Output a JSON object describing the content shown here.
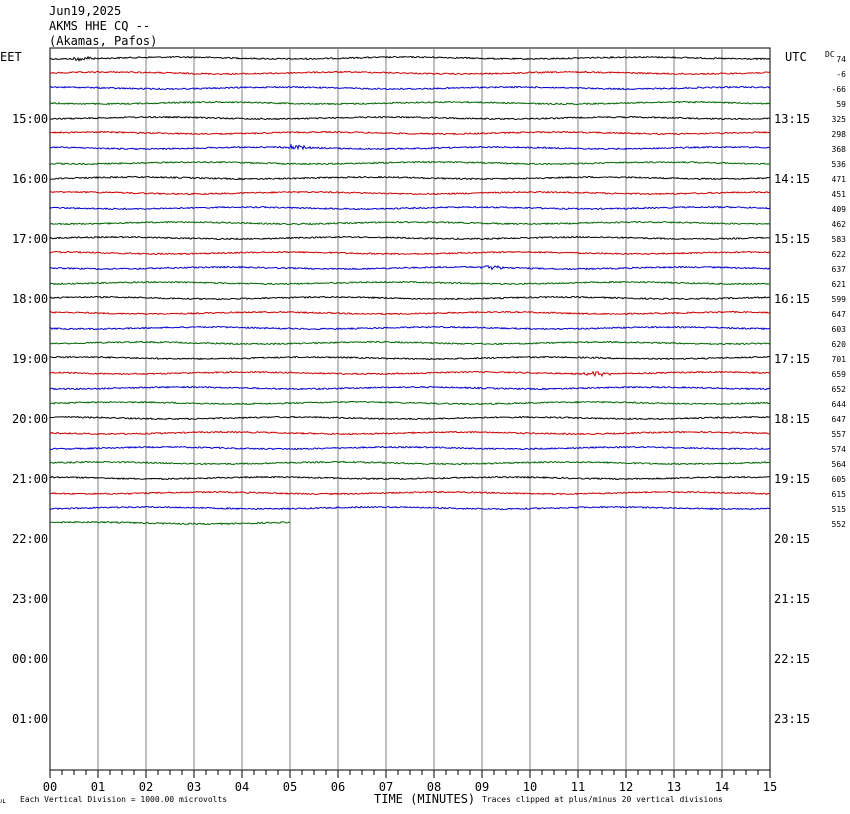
{
  "header": {
    "date": "Jun19,2025",
    "station": "AKMS HHE CQ --",
    "location": "(Akamas, Pafos)"
  },
  "left_tz": "EET",
  "right_tz": "UTC",
  "dc_label": "DC",
  "footer": {
    "corner": "ᴊʟ",
    "scale_note": "Each Vertical Division = 1000.00 microvolts",
    "xlabel": "TIME (MINUTES)",
    "clip_note": "Traces clipped at plus/minus 20 vertical divisions"
  },
  "colors": {
    "trace_cycle": [
      "#000000",
      "#cc0000",
      "#0000cc",
      "#006600"
    ],
    "grid": "#808080"
  },
  "chart_data": {
    "type": "line",
    "title": "Jun19,2025 AKMS HHE CQ -- (Akamas, Pafos)",
    "xlabel": "TIME (MINUTES)",
    "xlim": [
      0,
      15
    ],
    "x_ticks": [
      "00",
      "01",
      "02",
      "03",
      "04",
      "05",
      "06",
      "07",
      "08",
      "09",
      "10",
      "11",
      "12",
      "13",
      "14",
      "15"
    ],
    "left_hour_labels": [
      "15:00",
      "16:00",
      "17:00",
      "18:00",
      "19:00",
      "20:00",
      "21:00",
      "22:00",
      "23:00",
      "00:00",
      "01:00"
    ],
    "right_hour_labels": [
      "13:15",
      "14:15",
      "15:15",
      "16:15",
      "17:15",
      "18:15",
      "19:15",
      "20:15",
      "21:15",
      "22:15",
      "23:15"
    ],
    "dc_offsets": [
      "74",
      "-6",
      "-66",
      "59",
      "325",
      "298",
      "368",
      "536",
      "471",
      "451",
      "409",
      "462",
      "583",
      "622",
      "637",
      "621",
      "599",
      "647",
      "603",
      "620",
      "701",
      "659",
      "652",
      "644",
      "647",
      "557",
      "574",
      "564",
      "605",
      "615",
      "515",
      "552"
    ],
    "traces": 32,
    "last_trace_end_minute": 5.0,
    "events": [
      {
        "trace": 0,
        "minute": 0.7
      },
      {
        "trace": 6,
        "minute": 5.1
      },
      {
        "trace": 14,
        "minute": 9.2
      },
      {
        "trace": 21,
        "minute": 11.4
      }
    ]
  }
}
